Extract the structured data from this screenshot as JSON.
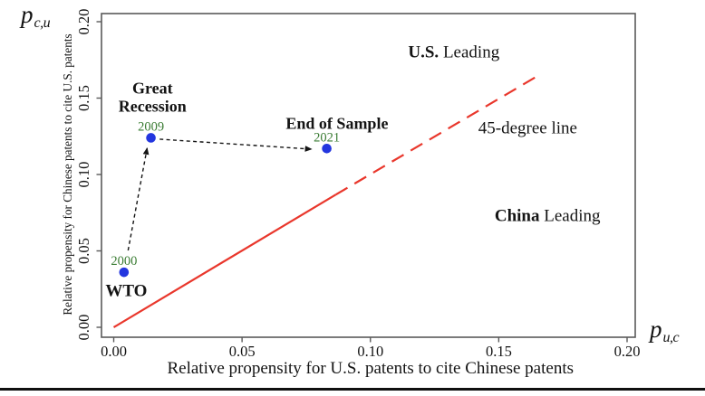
{
  "page": {
    "background": "#ffffff"
  },
  "axis_symbols": {
    "y": {
      "base": "p",
      "sub": "c,u"
    },
    "x": {
      "base": "p",
      "sub": "u,c"
    }
  },
  "chart_data": {
    "type": "scatter",
    "title": "",
    "xlabel": "Relative propensity for U.S. patents to cite Chinese patents",
    "ylabel": "Relative propensity for Chinese patents to cite U.S. patents",
    "xlim": [
      0,
      0.2
    ],
    "ylim": [
      0,
      0.2
    ],
    "grid": false,
    "x_ticks": {
      "values": [
        0,
        0.05,
        0.1,
        0.15,
        0.2
      ],
      "labels": [
        "0.00",
        "0.05",
        "0.10",
        "0.15",
        "0.20"
      ]
    },
    "y_ticks": {
      "values": [
        0,
        0.05,
        0.1,
        0.15,
        0.2
      ],
      "labels": [
        "0.00",
        "0.05",
        "0.10",
        "0.15",
        "0.20"
      ]
    },
    "colors": {
      "point": "#2336df",
      "year_label": "#3a7c33",
      "line": "#e9372c",
      "frame": "#5a5a5a",
      "text": "#141414"
    },
    "points": [
      {
        "year": "2000",
        "x": 0.004,
        "y": 0.036
      },
      {
        "year": "2009",
        "x": 0.0145,
        "y": 0.124
      },
      {
        "year": "2021",
        "x": 0.083,
        "y": 0.117
      }
    ],
    "reference_line": {
      "label": "45-degree line",
      "from": [
        0,
        0
      ],
      "solid_until": [
        0.0865,
        0.0868
      ],
      "to": [
        0.1667,
        0.166
      ]
    },
    "arrows": [
      {
        "name": "arrow-2000-to-2009",
        "from": [
          0.0056,
          0.0503
        ],
        "to": [
          0.013,
          0.1172
        ]
      },
      {
        "name": "arrow-2009-to-2021",
        "from": [
          0.0179,
          0.1231
        ],
        "to": [
          0.077,
          0.1166
        ]
      }
    ],
    "annotations": [
      {
        "name": "annotation-great-recession",
        "x": 0.0151,
        "y": 0.1568,
        "size": 18,
        "line_gap": 20,
        "lines": [
          [
            {
              "t": "Great",
              "b": true
            }
          ],
          [
            {
              "t": "Recession",
              "b": true
            }
          ]
        ]
      },
      {
        "name": "annotation-end-of-sample",
        "x": 0.087,
        "y": 0.1337,
        "size": 18,
        "lines": [
          [
            {
              "t": "End of Sample",
              "b": true
            }
          ]
        ]
      },
      {
        "name": "annotation-wto",
        "x": 0.0049,
        "y": 0.0243,
        "size": 19,
        "lines": [
          [
            {
              "t": "WTO",
              "b": true
            }
          ]
        ]
      },
      {
        "name": "annotation-us-leading",
        "x": 0.1325,
        "y": 0.1805,
        "size": 19,
        "lines": [
          [
            {
              "t": "U.S.",
              "b": true
            },
            {
              "t": " Leading",
              "b": false
            }
          ]
        ]
      },
      {
        "name": "annotation-45-degree-line",
        "x": 0.1613,
        "y": 0.1308,
        "size": 19,
        "lines": [
          [
            {
              "t": "45-degree line",
              "b": false
            }
          ]
        ]
      },
      {
        "name": "annotation-china-leading",
        "x": 0.169,
        "y": 0.0734,
        "size": 19,
        "lines": [
          [
            {
              "t": "China",
              "b": true
            },
            {
              "t": " Leading",
              "b": false
            }
          ]
        ]
      }
    ]
  }
}
